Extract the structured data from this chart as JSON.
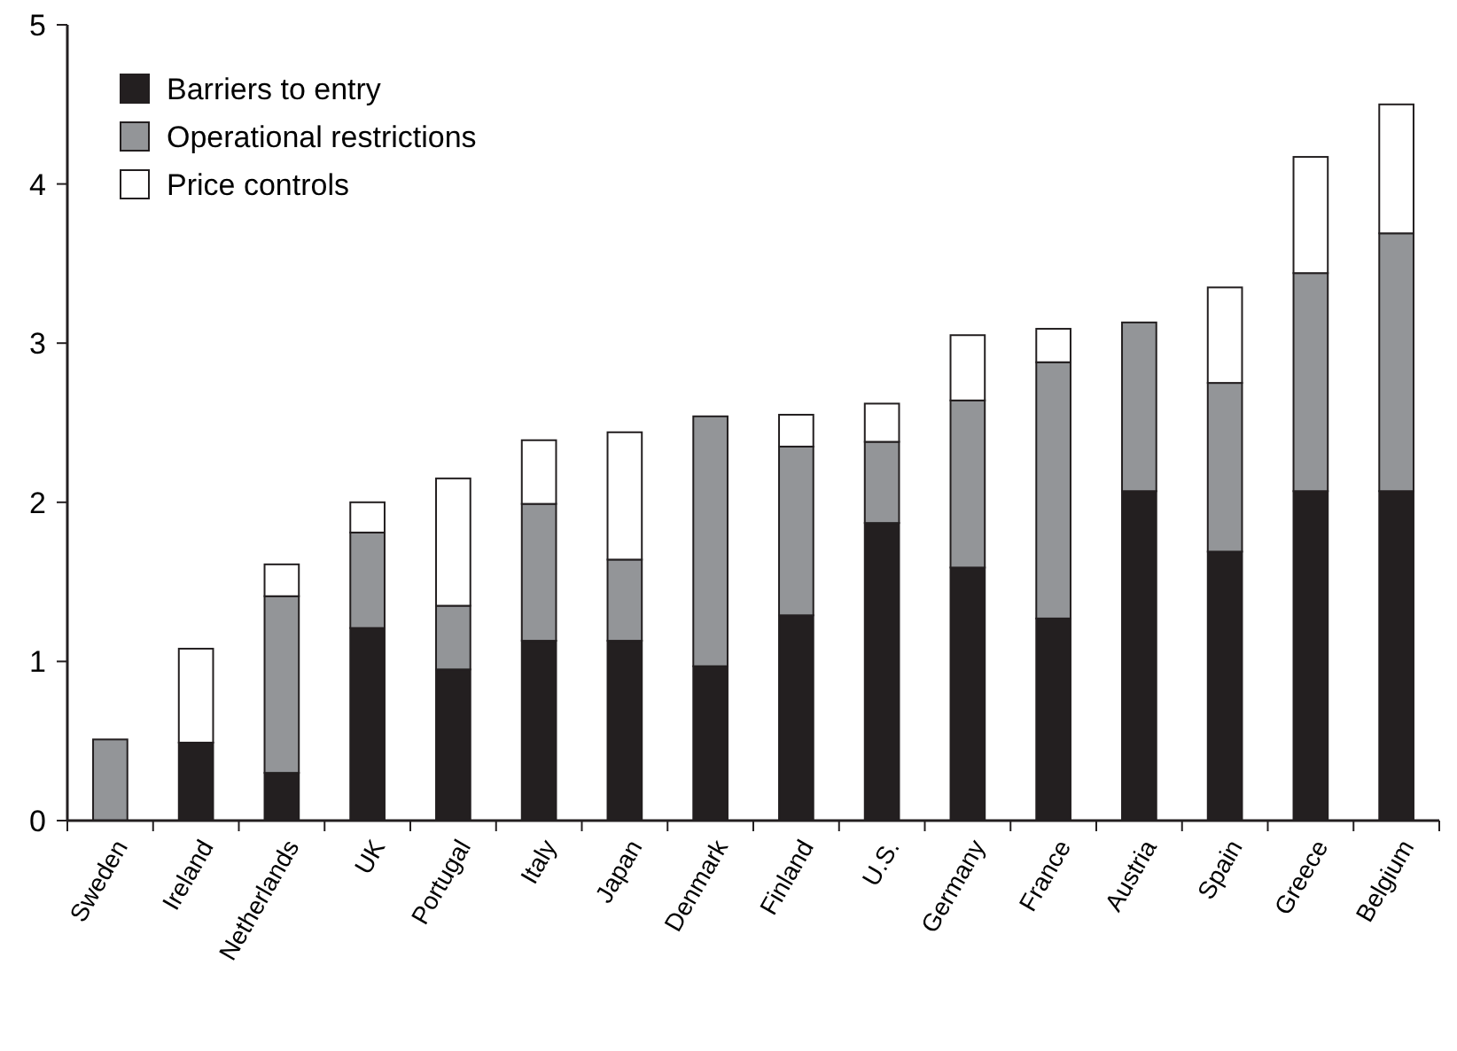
{
  "chart_data": {
    "type": "bar",
    "stacked": true,
    "categories": [
      "Sweden",
      "Ireland",
      "Netherlands",
      "UK",
      "Portugal",
      "Italy",
      "Japan",
      "Denmark",
      "Finland",
      "U.S.",
      "Germany",
      "France",
      "Austria",
      "Spain",
      "Greece",
      "Belgium"
    ],
    "series": [
      {
        "name": "Barriers to entry",
        "color": "#231f20",
        "values": [
          0,
          0.49,
          0.3,
          1.21,
          0.95,
          1.13,
          1.13,
          0.97,
          1.29,
          1.87,
          1.59,
          1.27,
          2.07,
          1.69,
          2.07,
          2.07
        ]
      },
      {
        "name": "Operational restrictions",
        "color": "#939598",
        "values": [
          0.51,
          0,
          1.11,
          0.6,
          0.4,
          0.86,
          0.51,
          1.57,
          1.06,
          0.51,
          1.05,
          1.61,
          1.06,
          1.06,
          1.37,
          1.62
        ]
      },
      {
        "name": "Price controls",
        "color": "#ffffff",
        "values": [
          0,
          0.59,
          0.2,
          0.19,
          0.8,
          0.4,
          0.8,
          0,
          0.2,
          0.24,
          0.41,
          0.21,
          0,
          0.6,
          0.73,
          0.81
        ]
      }
    ],
    "ylim": [
      0,
      5
    ],
    "yticks": [
      0,
      1,
      2,
      3,
      4,
      5
    ],
    "grid": false,
    "legend": "top left"
  }
}
